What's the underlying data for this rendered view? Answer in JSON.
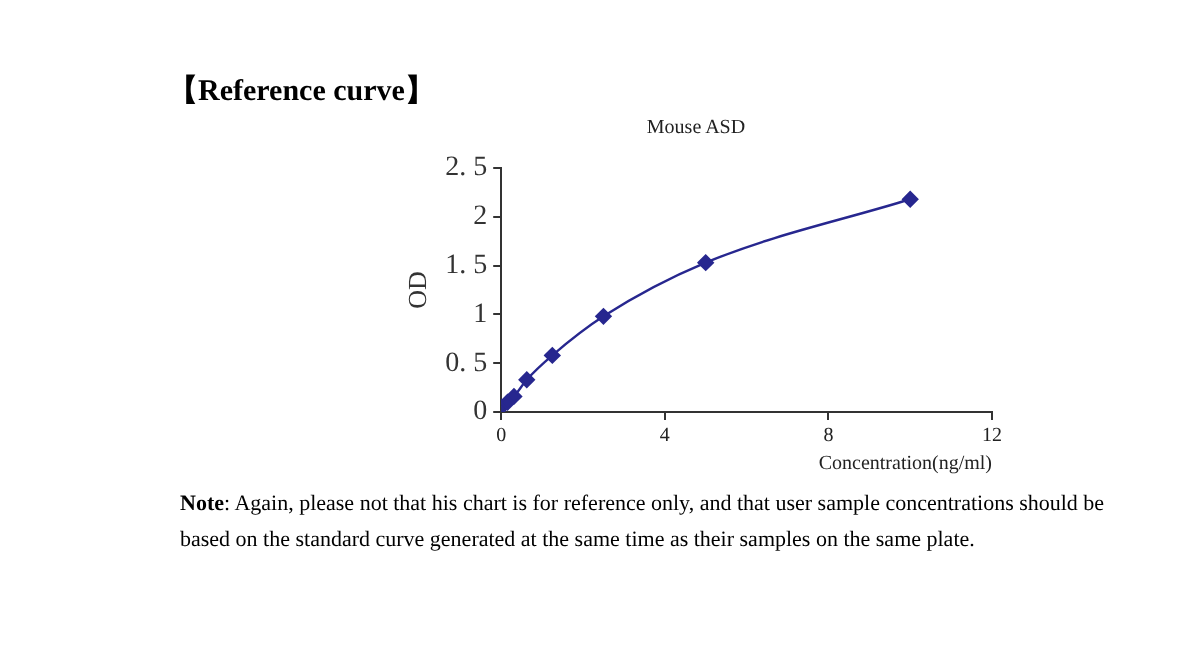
{
  "chart_data": {
    "type": "line",
    "title": "Mouse ASD",
    "xlabel": "Concentration(ng/ml)",
    "ylabel": "OD",
    "annotations": [
      "【Reference curve】",
      "Note: Again, please not that his chart is for reference only, and that user sample concentrations should be based on the standard curve generated at the same time as their samples on the same plate."
    ],
    "x": [
      0,
      0.156,
      0.312,
      0.625,
      1.25,
      2.5,
      5,
      10
    ],
    "series": [
      {
        "color": "#27278f",
        "values": [
          0.05,
          0.1,
          0.16,
          0.33,
          0.58,
          0.98,
          1.53,
          2.18
        ]
      }
    ],
    "xlim": [
      0,
      12
    ],
    "xticks": [
      0,
      4,
      8,
      12
    ],
    "ylim": [
      0,
      2.5
    ],
    "yticks": [
      0,
      {
        "value": 0.5,
        "label": "0. 5"
      },
      1,
      {
        "value": 1.5,
        "label": "1. 5"
      },
      2,
      {
        "value": 2.5,
        "label": "2. 5"
      }
    ],
    "grid": false,
    "legend": false,
    "marker": "diamond",
    "line_style": "solid"
  }
}
